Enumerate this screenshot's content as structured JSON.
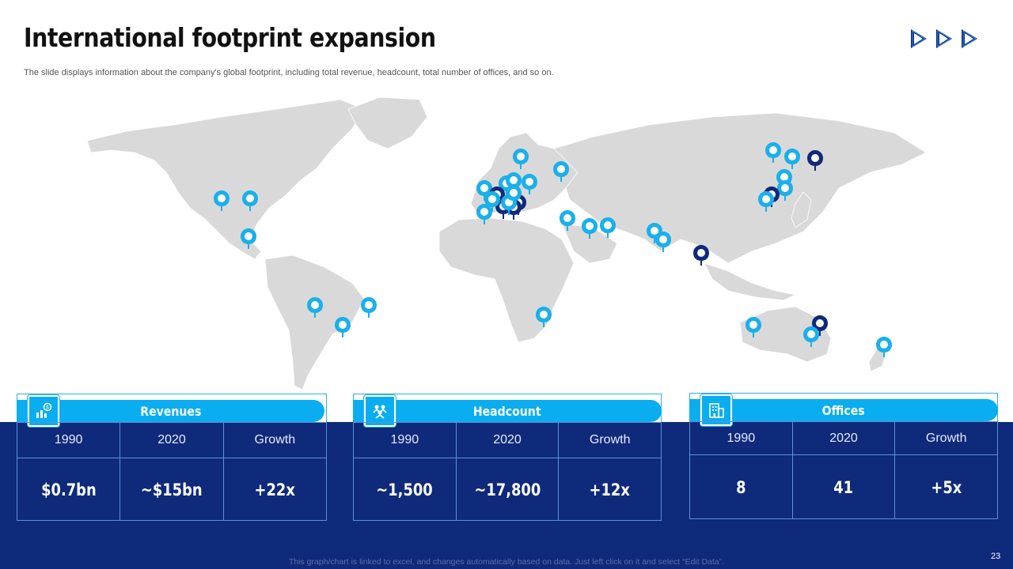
{
  "slide": {
    "title": "International footprint expansion",
    "subtitle": "The slide displays information about the company's global footprint, including total revenue, headcount, total number of offices, and so on.",
    "footer_note": "This graph/chart is linked to excel, and changes automatically based on data. Just left click on it and select “Edit Data”.",
    "page_number": "23"
  },
  "colors": {
    "navy": "#0f2a7a",
    "accent_blue": "#0aaef0",
    "map_land": "#d9d9d9",
    "pin_light": "#1ab0ea",
    "pin_dark": "#0f2a7a"
  },
  "nav_icons": [
    "play-arrow-icon",
    "play-arrow-icon",
    "play-arrow-icon"
  ],
  "cards": [
    {
      "title": "Revenues",
      "icon": "revenue-chart-icon",
      "headers": [
        "1990",
        "2020",
        "Growth"
      ],
      "values": [
        "$0.7bn",
        "~$15bn",
        "+22x"
      ]
    },
    {
      "title": "Headcount",
      "icon": "people-group-icon",
      "headers": [
        "1990",
        "2020",
        "Growth"
      ],
      "values": [
        "~1,500",
        "~17,800",
        "+12x"
      ]
    },
    {
      "title": "Offices",
      "icon": "office-building-icon",
      "headers": [
        "1990",
        "2020",
        "Growth"
      ],
      "values": [
        "8",
        "41",
        "+5x"
      ]
    }
  ]
}
